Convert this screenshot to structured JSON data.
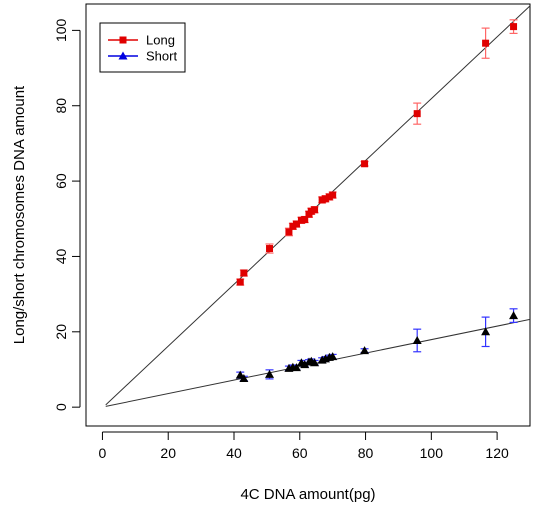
{
  "chart_data": {
    "type": "scatter",
    "title": "",
    "xlabel": "4C DNA amount(pg)",
    "ylabel": "Long/short chromosomes DNA amount",
    "xlim": [
      -5,
      130
    ],
    "ylim": [
      -5,
      107
    ],
    "xticks": [
      0,
      20,
      40,
      60,
      80,
      100,
      120
    ],
    "yticks": [
      0,
      20,
      40,
      60,
      80,
      100
    ],
    "grid": false,
    "legend_position": "top-left",
    "series": [
      {
        "name": "Long",
        "marker": "square",
        "color": "#e00000",
        "error_color": "#ff6666",
        "points": [
          {
            "x": 41.9,
            "y": 33.2,
            "err": 0.8
          },
          {
            "x": 43.0,
            "y": 35.6,
            "err": 0.8
          },
          {
            "x": 50.8,
            "y": 42.1,
            "err": 1.2
          },
          {
            "x": 56.7,
            "y": 46.5,
            "err": 1.0
          },
          {
            "x": 57.9,
            "y": 48.0,
            "err": 0.8
          },
          {
            "x": 59.0,
            "y": 48.6,
            "err": 0.8
          },
          {
            "x": 60.5,
            "y": 49.6,
            "err": 0.8
          },
          {
            "x": 61.5,
            "y": 49.8,
            "err": 0.8
          },
          {
            "x": 62.8,
            "y": 51.2,
            "err": 0.8
          },
          {
            "x": 63.5,
            "y": 52.0,
            "err": 0.8
          },
          {
            "x": 64.5,
            "y": 52.4,
            "err": 0.8
          },
          {
            "x": 66.8,
            "y": 55.0,
            "err": 0.8
          },
          {
            "x": 67.8,
            "y": 55.3,
            "err": 0.8
          },
          {
            "x": 69.0,
            "y": 55.8,
            "err": 0.8
          },
          {
            "x": 70.0,
            "y": 56.3,
            "err": 0.8
          },
          {
            "x": 79.7,
            "y": 64.6,
            "err": 0.6
          },
          {
            "x": 95.7,
            "y": 77.9,
            "err": 2.8
          },
          {
            "x": 116.5,
            "y": 96.6,
            "err": 4.0
          },
          {
            "x": 125.0,
            "y": 101.0,
            "err": 1.8
          }
        ]
      },
      {
        "name": "Short",
        "marker": "triangle",
        "color": "#000000",
        "error_color": "#3333ff",
        "points": [
          {
            "x": 41.9,
            "y": 8.5,
            "err": 0.8
          },
          {
            "x": 43.0,
            "y": 7.6,
            "err": 0.6
          },
          {
            "x": 50.8,
            "y": 8.7,
            "err": 1.2
          },
          {
            "x": 56.7,
            "y": 10.3,
            "err": 0.6
          },
          {
            "x": 57.9,
            "y": 10.6,
            "err": 0.6
          },
          {
            "x": 59.0,
            "y": 10.5,
            "err": 0.6
          },
          {
            "x": 60.5,
            "y": 11.8,
            "err": 0.6
          },
          {
            "x": 61.5,
            "y": 11.3,
            "err": 0.6
          },
          {
            "x": 62.8,
            "y": 12.0,
            "err": 0.6
          },
          {
            "x": 63.5,
            "y": 12.2,
            "err": 0.6
          },
          {
            "x": 64.5,
            "y": 11.8,
            "err": 0.6
          },
          {
            "x": 66.8,
            "y": 12.5,
            "err": 0.6
          },
          {
            "x": 67.8,
            "y": 12.8,
            "err": 0.6
          },
          {
            "x": 69.0,
            "y": 13.2,
            "err": 0.6
          },
          {
            "x": 70.0,
            "y": 13.4,
            "err": 0.6
          },
          {
            "x": 79.7,
            "y": 15.0,
            "err": 0.5
          },
          {
            "x": 95.7,
            "y": 17.7,
            "err": 3.0
          },
          {
            "x": 116.5,
            "y": 20.0,
            "err": 3.9
          },
          {
            "x": 125.0,
            "y": 24.3,
            "err": 1.8
          }
        ]
      }
    ],
    "fit_lines": [
      {
        "series": "Long",
        "x": [
          1,
          130
        ],
        "y": [
          0.6,
          106.5
        ],
        "color": "#333333"
      },
      {
        "series": "Short",
        "x": [
          1,
          130
        ],
        "y": [
          0.2,
          23.3
        ],
        "color": "#333333"
      }
    ]
  }
}
